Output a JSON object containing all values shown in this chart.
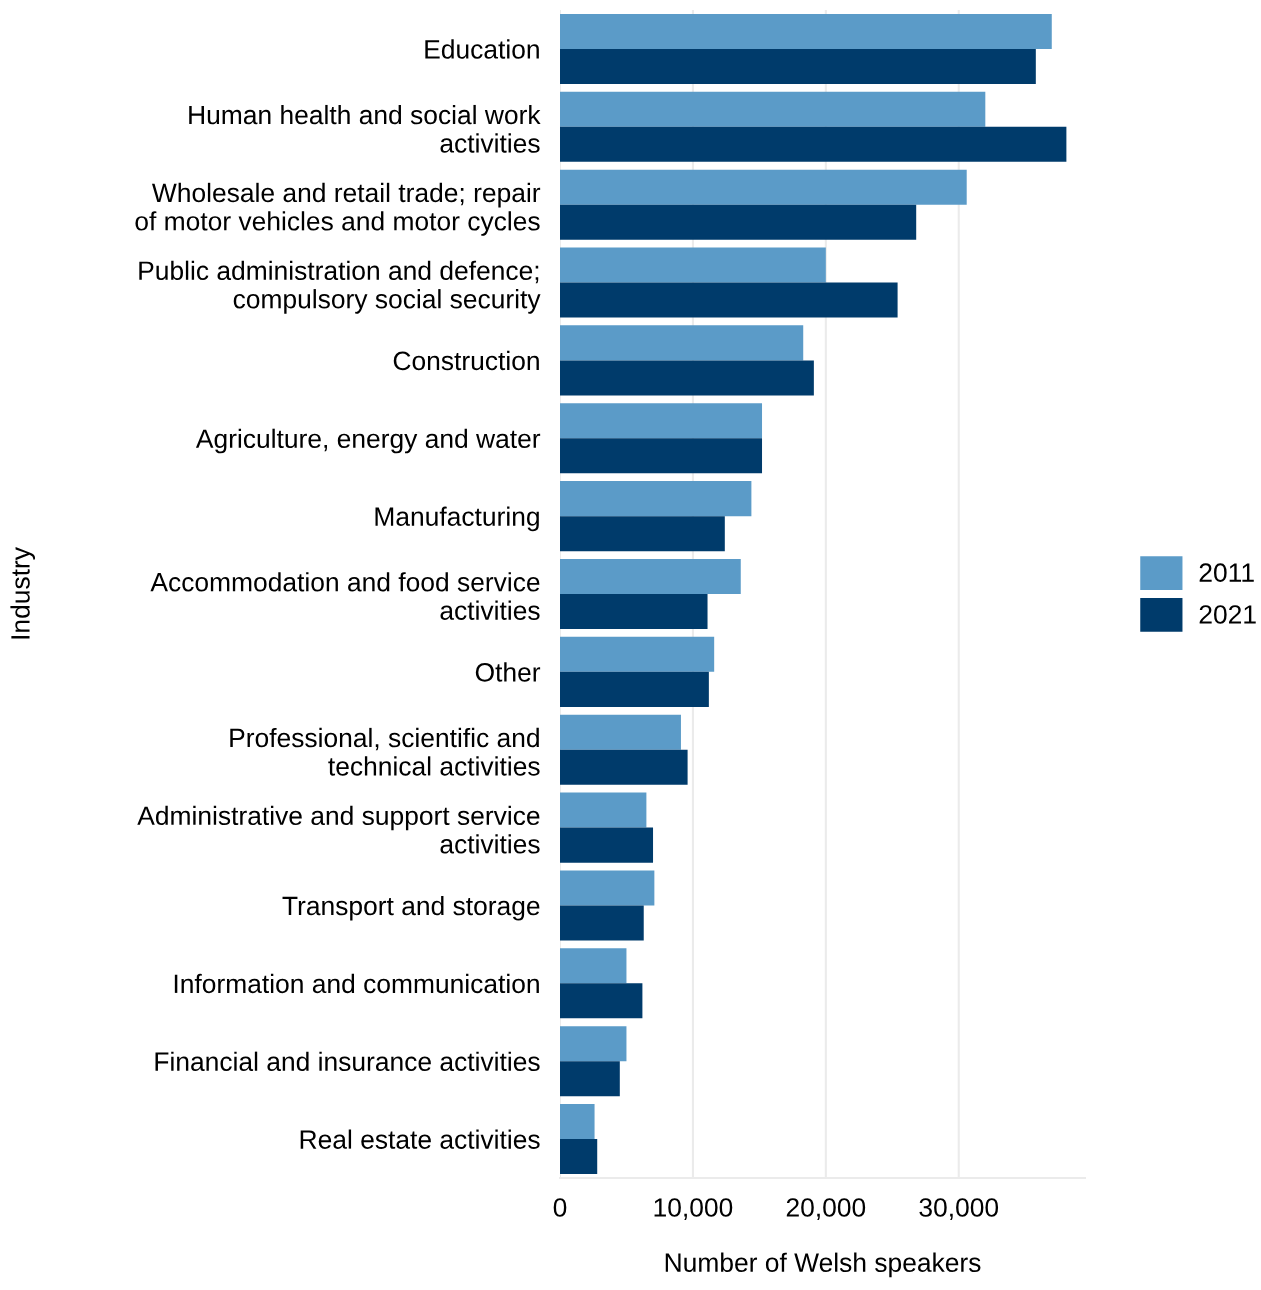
{
  "chart_data": {
    "type": "bar",
    "orientation": "horizontal",
    "categories": [
      "Education",
      "Human health and social work\nactivities",
      "Wholesale and retail trade; repair\nof motor vehicles and motor cycles",
      "Public administration and defence;\ncompulsory social security",
      "Construction",
      "Agriculture, energy and water",
      "Manufacturing",
      "Accommodation and food service\nactivities",
      "Other",
      "Professional, scientific and\ntechnical activities",
      "Administrative and support service\nactivities",
      "Transport and storage",
      "Information and communication",
      "Financial and insurance activities",
      "Real estate activities"
    ],
    "series": [
      {
        "name": "2011",
        "color": "#5b9bc8",
        "values": [
          37000,
          32000,
          30600,
          20000,
          18300,
          15200,
          14400,
          13600,
          11600,
          9100,
          6500,
          7100,
          5000,
          5000,
          2600
        ]
      },
      {
        "name": "2021",
        "color": "#003b6b",
        "values": [
          35800,
          38100,
          26800,
          25400,
          19100,
          15200,
          12400,
          11100,
          11200,
          9600,
          7000,
          6300,
          6200,
          4500,
          2800
        ]
      }
    ],
    "xlabel": "Number of Welsh speakers",
    "ylabel": "Industry",
    "xlim": [
      0,
      39500
    ],
    "xticks": [
      0,
      {
        "value": 10000,
        "label": "10,000"
      },
      {
        "value": 20000,
        "label": "20,000"
      },
      {
        "value": 30000,
        "label": "30,000"
      }
    ],
    "grid": "x",
    "legend": "right"
  }
}
